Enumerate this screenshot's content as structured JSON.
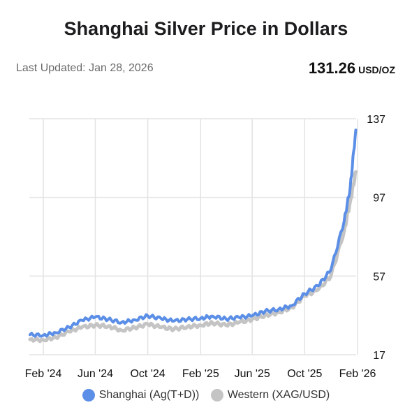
{
  "header": {
    "title": "Shanghai Silver Price in Dollars",
    "last_updated": "Last Updated: Jan 28, 2026",
    "price": "131.26",
    "price_unit": "USD/OZ"
  },
  "colors": {
    "shanghai": "#5b8ee6",
    "western": "#c4c4c4",
    "grid": "#e3e3e3"
  },
  "chart_data": {
    "type": "line",
    "title": "Shanghai Silver Price in Dollars",
    "xlabel": "",
    "ylabel": "",
    "ylim": [
      17,
      137
    ],
    "yticks": [
      "137",
      "97",
      "57",
      "17"
    ],
    "xticks": [
      "Feb '24",
      "Jun '24",
      "Oct '24",
      "Feb '25",
      "Jun '25",
      "Oct '25",
      "Feb '26"
    ],
    "grid": true,
    "legend_position": "bottom",
    "x": [
      "2024-01-01",
      "2024-02-01",
      "2024-03-01",
      "2024-04-01",
      "2024-05-01",
      "2024-06-01",
      "2024-07-01",
      "2024-08-01",
      "2024-09-01",
      "2024-10-01",
      "2024-11-01",
      "2024-12-01",
      "2025-01-01",
      "2025-02-01",
      "2025-03-01",
      "2025-04-01",
      "2025-05-01",
      "2025-06-01",
      "2025-07-01",
      "2025-08-01",
      "2025-09-01",
      "2025-10-01",
      "2025-11-01",
      "2025-12-01",
      "2026-01-01",
      "2026-01-15",
      "2026-01-28"
    ],
    "series": [
      {
        "name": "Shanghai (Ag(T+D))",
        "color": "#5b8ee6",
        "values": [
          27.2,
          26.9,
          28.2,
          31.0,
          34.5,
          36.2,
          35.0,
          33.4,
          34.7,
          36.8,
          35.4,
          34.1,
          35.0,
          35.5,
          36.6,
          35.2,
          36.0,
          36.8,
          39.1,
          40.0,
          42.0,
          48.0,
          52.0,
          60.0,
          85.0,
          102.0,
          131.26
        ]
      },
      {
        "name": "Western (XAG/USD)",
        "color": "#c4c4c4",
        "values": [
          24.8,
          24.5,
          25.8,
          28.8,
          31.0,
          32.0,
          31.5,
          29.4,
          30.8,
          32.5,
          31.0,
          30.0,
          31.2,
          32.0,
          33.2,
          32.0,
          33.4,
          35.0,
          37.0,
          38.5,
          41.0,
          47.0,
          50.0,
          57.0,
          80.0,
          95.0,
          110.0
        ]
      }
    ]
  }
}
